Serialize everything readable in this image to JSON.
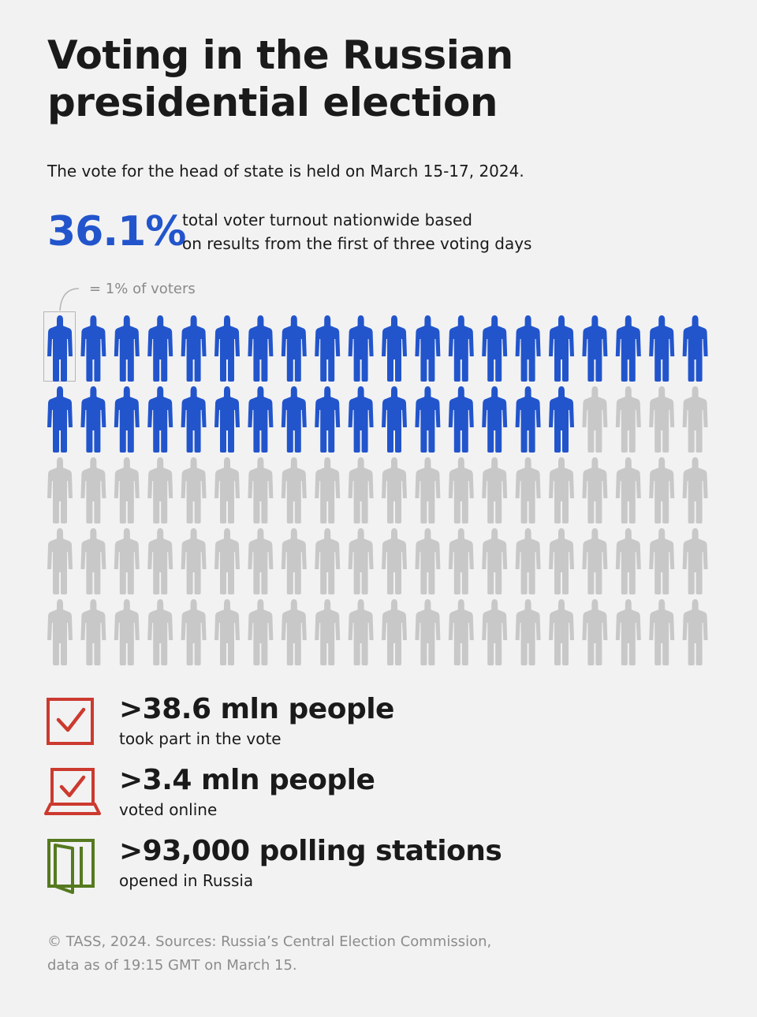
{
  "header": {
    "title": "Voting in the Russian presidential election",
    "subtitle": "The vote for the head of state is held on March 15-17, 2024."
  },
  "turnout": {
    "value": "36.1%",
    "description_line1": "total voter turnout nationwide based",
    "description_line2": "on results from the first of three voting days"
  },
  "legend": {
    "text": "= 1% of voters"
  },
  "chart_data": {
    "type": "pictogram",
    "unit": "1% of voters",
    "total": 100,
    "filled": 36,
    "rows": 5,
    "columns": 20,
    "colors": {
      "filled": "#2255cc",
      "empty": "#c8c8c8"
    }
  },
  "stats": [
    {
      "icon": "ballot-checkbox-icon",
      "value": ">38.6 mln people",
      "label": "took part in the vote",
      "color": "#cc3a2f"
    },
    {
      "icon": "laptop-checkbox-icon",
      "value": ">3.4 mln people",
      "label": "voted online",
      "color": "#cc3a2f"
    },
    {
      "icon": "door-icon",
      "value": ">93,000 polling stations",
      "label": "opened in Russia",
      "color": "#557a1f"
    }
  ],
  "footer": {
    "line1": "© TASS, 2024. Sources: Russia’s Central Election Commission,",
    "line2": "data as of 19:15 GMT on March 15."
  }
}
